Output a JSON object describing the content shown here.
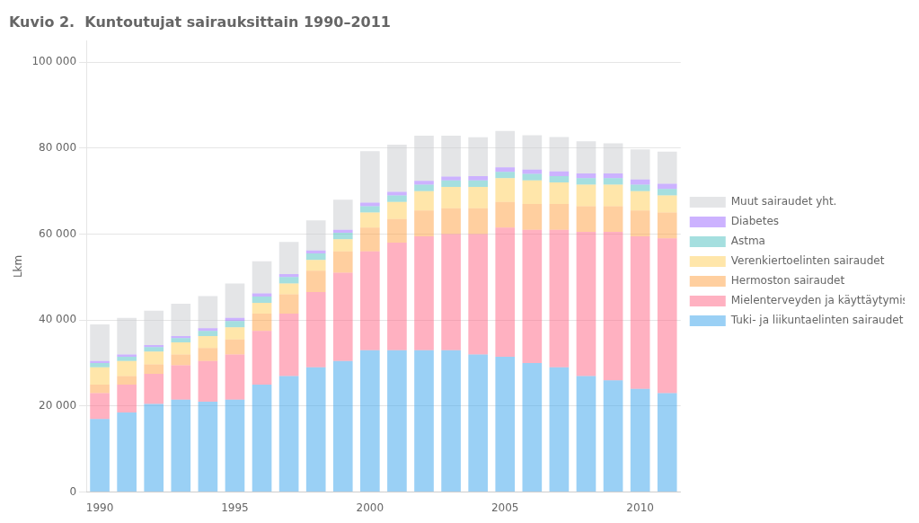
{
  "chart_data": {
    "type": "bar",
    "title": "Kuvio 2.  Kuntoutujat sairauksittain 1990–2011",
    "ylabel": "Lkm",
    "categories": [
      "1990",
      null,
      null,
      null,
      null,
      "1995",
      null,
      null,
      null,
      null,
      "2000",
      null,
      null,
      null,
      null,
      "2005",
      null,
      null,
      null,
      null,
      "2010",
      null
    ],
    "series": [
      {
        "name": "Tuki- ja liikuntaelinten sairaudet",
        "values": [
          17000,
          18500,
          20500,
          21500,
          21000,
          21500,
          25000,
          27000,
          29000,
          30500,
          33000,
          33000,
          33000,
          33000,
          32000,
          31500,
          30000,
          29000,
          27000,
          26000,
          24000,
          23000
        ]
      },
      {
        "name": "Mielenterveyden ja käyttäytymisen häiriöt",
        "values": [
          6000,
          6500,
          7000,
          8000,
          9500,
          10500,
          12500,
          14500,
          17500,
          20500,
          23000,
          25000,
          26500,
          27000,
          28000,
          30000,
          31000,
          32000,
          33500,
          34500,
          35500,
          36000
        ]
      },
      {
        "name": "Hermoston sairaudet",
        "values": [
          2000,
          2000,
          2200,
          2500,
          3000,
          3500,
          4000,
          4500,
          5000,
          5000,
          5500,
          5500,
          6000,
          6000,
          6000,
          6000,
          6000,
          6000,
          6000,
          6000,
          6000,
          6000
        ]
      },
      {
        "name": "Verenkiertoelinten sairaudet",
        "values": [
          4000,
          3500,
          3000,
          2800,
          2800,
          2800,
          2500,
          2500,
          2500,
          2800,
          3500,
          4000,
          4500,
          5000,
          5000,
          5500,
          5500,
          5000,
          5000,
          5000,
          4500,
          4000
        ]
      },
      {
        "name": "Astma",
        "values": [
          1000,
          1000,
          1000,
          1000,
          1200,
          1500,
          1500,
          1500,
          1500,
          1500,
          1500,
          1500,
          1500,
          1500,
          1500,
          1500,
          1500,
          1500,
          1500,
          1500,
          1500,
          1500
        ]
      },
      {
        "name": "Diabetes",
        "values": [
          500,
          500,
          500,
          500,
          600,
          700,
          700,
          700,
          700,
          700,
          800,
          800,
          900,
          900,
          1000,
          1000,
          1000,
          1100,
          1100,
          1100,
          1200,
          1200
        ]
      },
      {
        "name": "Muut sairaudet yht.",
        "values": [
          8500,
          8500,
          8000,
          7500,
          7500,
          8000,
          7500,
          7500,
          7000,
          7000,
          12000,
          11000,
          10500,
          9500,
          9000,
          8500,
          8000,
          8000,
          7500,
          7000,
          7000,
          7500
        ]
      }
    ],
    "ylim": [
      0,
      105000
    ],
    "yticks": [
      0,
      {
        "value": 20000,
        "label": "20 000"
      },
      {
        "value": 40000,
        "label": "40 000"
      },
      {
        "value": 60000,
        "label": "60 000"
      },
      {
        "value": 80000,
        "label": "80 000"
      },
      {
        "value": 100000,
        "label": "100 000"
      }
    ],
    "stacked": true,
    "grid": true,
    "legend": "right"
  }
}
